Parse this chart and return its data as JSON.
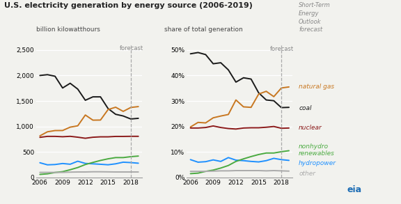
{
  "title": "U.S. electricity generation by energy source (2006-2019)",
  "ylabel_left": "billion kilowatthours",
  "ylabel_right": "share of total generation",
  "forecast_year": 2018,
  "years": [
    2006,
    2007,
    2008,
    2009,
    2010,
    2011,
    2012,
    2013,
    2014,
    2015,
    2016,
    2017,
    2018,
    2019
  ],
  "left": {
    "coal": [
      2000,
      2016,
      1985,
      1755,
      1847,
      1733,
      1514,
      1581,
      1581,
      1352,
      1239,
      1206,
      1147,
      1160
    ],
    "natural_gas": [
      816,
      896,
      920,
      921,
      987,
      1013,
      1225,
      1124,
      1126,
      1331,
      1378,
      1296,
      1373,
      1390
    ],
    "nuclear": [
      787,
      806,
      806,
      799,
      807,
      790,
      769,
      789,
      797,
      797,
      805,
      805,
      807,
      807
    ],
    "hydropower": [
      289,
      248,
      254,
      274,
      260,
      319,
      276,
      268,
      259,
      249,
      268,
      300,
      292,
      280
    ],
    "nonhydro_renewables": [
      60,
      72,
      98,
      114,
      152,
      195,
      254,
      295,
      334,
      366,
      390,
      390,
      408,
      420
    ],
    "other": [
      100,
      100,
      100,
      100,
      105,
      108,
      108,
      112,
      112,
      110,
      108,
      108,
      108,
      108
    ]
  },
  "right": {
    "coal": [
      48.5,
      49.0,
      48.2,
      44.6,
      45.0,
      42.2,
      37.4,
      39.1,
      38.6,
      33.2,
      30.4,
      30.1,
      27.4,
      27.5
    ],
    "natural_gas": [
      19.8,
      21.6,
      21.4,
      23.4,
      24.1,
      24.7,
      30.4,
      27.7,
      27.5,
      32.7,
      33.8,
      31.7,
      35.1,
      35.5
    ],
    "nuclear": [
      19.4,
      19.4,
      19.6,
      20.2,
      19.6,
      19.2,
      19.0,
      19.4,
      19.5,
      19.5,
      19.7,
      20.0,
      19.3,
      19.4
    ],
    "hydropower": [
      7.0,
      6.0,
      6.2,
      6.9,
      6.3,
      7.8,
      6.8,
      6.6,
      6.3,
      6.1,
      6.6,
      7.5,
      7.0,
      6.7
    ],
    "nonhydro_renewables": [
      1.5,
      1.7,
      2.4,
      2.9,
      3.7,
      4.7,
      6.3,
      7.3,
      8.2,
      9.0,
      9.6,
      9.6,
      10.1,
      10.5
    ],
    "other": [
      2.4,
      2.4,
      2.4,
      2.5,
      2.6,
      2.6,
      2.7,
      2.7,
      2.7,
      2.7,
      2.6,
      2.7,
      2.6,
      2.5
    ]
  },
  "colors": {
    "coal": "#1a1a1a",
    "natural_gas": "#c87720",
    "nuclear": "#8b1a1a",
    "hydropower": "#1e90ff",
    "nonhydro_renewables": "#4aaa40",
    "other": "#aaaaaa"
  },
  "background_color": "#f2f2ee",
  "short_term_text": "Short-Term\nEnergy\nOutlook\nforecast"
}
